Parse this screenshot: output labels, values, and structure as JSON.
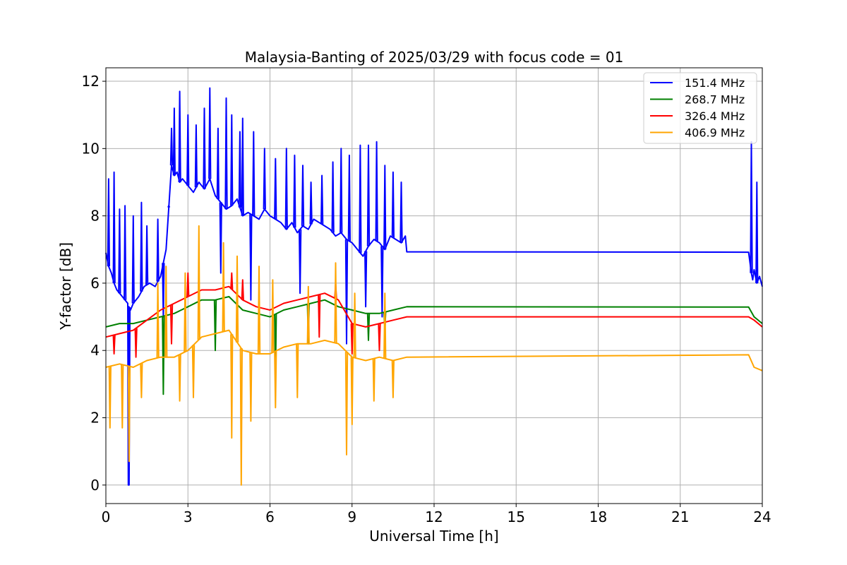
{
  "chart_data": {
    "type": "line",
    "title": "Malaysia-Banting of 2025/03/29 with focus code = 01",
    "xlabel": "Universal Time [h]",
    "ylabel": "Y-factor [dB]",
    "xlim": [
      0,
      24
    ],
    "ylim": [
      -0.55,
      12.4
    ],
    "xticks": [
      0,
      3,
      6,
      9,
      12,
      15,
      18,
      21,
      24
    ],
    "yticks": [
      0,
      2,
      4,
      6,
      8,
      10,
      12
    ],
    "grid": true,
    "legend_position": "top-right",
    "series": [
      {
        "name": "151.4 MHz",
        "color": "#0000ff",
        "x": [
          0,
          0.1,
          0.2,
          0.3,
          0.4,
          0.5,
          0.6,
          0.7,
          0.8,
          0.82,
          0.84,
          0.9,
          1.0,
          1.2,
          1.4,
          1.6,
          1.8,
          2.0,
          2.2,
          2.4,
          2.5,
          2.6,
          2.7,
          2.8,
          3.0,
          3.2,
          3.4,
          3.6,
          3.8,
          4.0,
          4.2,
          4.4,
          4.6,
          4.8,
          5.0,
          5.2,
          5.4,
          5.6,
          5.8,
          6.0,
          6.2,
          6.4,
          6.6,
          6.8,
          7.0,
          7.2,
          7.4,
          7.6,
          7.8,
          8.0,
          8.2,
          8.4,
          8.6,
          8.8,
          9.0,
          9.2,
          9.4,
          9.6,
          9.8,
          10.0,
          10.2,
          10.4,
          10.6,
          10.8,
          10.95,
          11.0,
          23.5,
          23.6,
          23.65,
          23.7,
          23.8,
          23.9,
          24.0
        ],
        "y": [
          6.9,
          6.5,
          6.3,
          6.0,
          5.8,
          5.7,
          5.6,
          5.5,
          5.4,
          0.0,
          5.3,
          5.2,
          5.4,
          5.6,
          5.9,
          6.0,
          5.9,
          6.2,
          7.0,
          9.5,
          9.2,
          9.3,
          9.0,
          9.1,
          8.9,
          8.7,
          9.0,
          8.8,
          9.1,
          8.6,
          8.4,
          8.2,
          8.3,
          8.5,
          8.0,
          8.1,
          8.0,
          7.9,
          8.2,
          8.0,
          7.9,
          7.8,
          7.6,
          7.8,
          7.5,
          7.7,
          7.6,
          7.9,
          7.8,
          7.7,
          7.6,
          7.4,
          7.5,
          7.3,
          7.2,
          7.0,
          6.8,
          7.1,
          7.3,
          7.2,
          7.0,
          7.4,
          7.3,
          7.2,
          7.4,
          6.93,
          6.92,
          6.3,
          6.1,
          6.4,
          6.0,
          6.2,
          5.9
        ],
        "spikes": [
          [
            0.1,
            9.1
          ],
          [
            0.3,
            9.3
          ],
          [
            0.5,
            8.2
          ],
          [
            0.7,
            8.3
          ],
          [
            1.0,
            8.0
          ],
          [
            1.3,
            8.4
          ],
          [
            1.5,
            7.7
          ],
          [
            1.9,
            7.9
          ],
          [
            2.3,
            8.3
          ],
          [
            2.4,
            10.6
          ],
          [
            2.5,
            11.2
          ],
          [
            2.7,
            11.7
          ],
          [
            3.0,
            11.0
          ],
          [
            3.3,
            10.7
          ],
          [
            3.6,
            11.2
          ],
          [
            3.8,
            11.8
          ],
          [
            4.1,
            10.6
          ],
          [
            4.4,
            11.5
          ],
          [
            4.6,
            11.0
          ],
          [
            4.9,
            10.5
          ],
          [
            5.0,
            10.9
          ],
          [
            5.4,
            10.5
          ],
          [
            5.8,
            10.0
          ],
          [
            6.2,
            9.7
          ],
          [
            6.6,
            10.0
          ],
          [
            6.9,
            9.8
          ],
          [
            7.2,
            9.5
          ],
          [
            7.5,
            9.0
          ],
          [
            7.9,
            9.2
          ],
          [
            8.3,
            9.6
          ],
          [
            8.6,
            10.0
          ],
          [
            8.9,
            9.8
          ],
          [
            9.3,
            10.1
          ],
          [
            9.6,
            10.1
          ],
          [
            9.9,
            10.2
          ],
          [
            10.2,
            9.5
          ],
          [
            10.5,
            9.3
          ],
          [
            10.8,
            9.0
          ],
          [
            23.6,
            10.2
          ],
          [
            23.8,
            9.0
          ]
        ],
        "dips": [
          [
            0.85,
            0.0
          ],
          [
            2.1,
            5.0
          ],
          [
            4.2,
            6.3
          ],
          [
            5.3,
            5.5
          ],
          [
            7.1,
            5.7
          ],
          [
            8.8,
            4.2
          ],
          [
            9.5,
            5.3
          ],
          [
            10.1,
            5.0
          ]
        ]
      },
      {
        "name": "268.7 MHz",
        "color": "#008000",
        "x": [
          0,
          0.5,
          1.0,
          1.5,
          2.0,
          2.5,
          3.0,
          3.5,
          4.0,
          4.5,
          5.0,
          5.5,
          6.0,
          6.5,
          7.0,
          7.5,
          8.0,
          8.5,
          9.0,
          9.5,
          10.0,
          10.5,
          11.0,
          23.5,
          23.7,
          24.0
        ],
        "y": [
          4.7,
          4.8,
          4.8,
          4.9,
          5.0,
          5.1,
          5.3,
          5.5,
          5.5,
          5.6,
          5.2,
          5.1,
          5.0,
          5.2,
          5.3,
          5.4,
          5.5,
          5.3,
          5.2,
          5.1,
          5.1,
          5.2,
          5.3,
          5.29,
          5.0,
          4.8
        ],
        "dips": [
          [
            2.1,
            2.7
          ],
          [
            4.0,
            4.0
          ],
          [
            6.2,
            3.2
          ],
          [
            7.4,
            4.2
          ],
          [
            9.6,
            4.3
          ],
          [
            10.2,
            4.6
          ]
        ]
      },
      {
        "name": "326.4 MHz",
        "color": "#ff0000",
        "x": [
          0,
          0.5,
          1.0,
          1.5,
          2.0,
          2.5,
          3.0,
          3.5,
          4.0,
          4.5,
          5.0,
          5.5,
          6.0,
          6.5,
          7.0,
          7.5,
          8.0,
          8.5,
          9.0,
          9.5,
          10.0,
          10.5,
          11.0,
          23.5,
          23.7,
          24.0
        ],
        "y": [
          4.4,
          4.5,
          4.6,
          4.9,
          5.2,
          5.4,
          5.6,
          5.8,
          5.8,
          5.9,
          5.5,
          5.3,
          5.2,
          5.4,
          5.5,
          5.6,
          5.7,
          5.5,
          4.8,
          4.7,
          4.8,
          4.9,
          5.0,
          5.0,
          4.9,
          4.7
        ],
        "spikes": [
          [
            3.0,
            6.3
          ],
          [
            4.6,
            6.3
          ],
          [
            5.0,
            6.1
          ],
          [
            8.4,
            6.0
          ]
        ],
        "dips": [
          [
            0.3,
            3.9
          ],
          [
            1.1,
            3.8
          ],
          [
            2.4,
            4.2
          ],
          [
            7.8,
            4.4
          ],
          [
            9.0,
            3.9
          ],
          [
            10.0,
            4.0
          ]
        ]
      },
      {
        "name": "406.9 MHz",
        "color": "#ffa500",
        "x": [
          0,
          0.5,
          1.0,
          1.5,
          2.0,
          2.5,
          3.0,
          3.5,
          4.0,
          4.5,
          5.0,
          5.5,
          6.0,
          6.5,
          7.0,
          7.5,
          8.0,
          8.5,
          9.0,
          9.5,
          10.0,
          10.5,
          11.0,
          23.5,
          23.7,
          24.0
        ],
        "y": [
          3.5,
          3.6,
          3.5,
          3.7,
          3.8,
          3.8,
          4.0,
          4.4,
          4.5,
          4.6,
          4.0,
          3.9,
          3.9,
          4.1,
          4.2,
          4.2,
          4.3,
          4.2,
          3.8,
          3.7,
          3.8,
          3.7,
          3.8,
          3.87,
          3.5,
          3.4
        ],
        "spikes": [
          [
            1.9,
            6.0
          ],
          [
            2.2,
            6.5
          ],
          [
            2.9,
            6.3
          ],
          [
            3.4,
            7.7
          ],
          [
            4.3,
            7.2
          ],
          [
            4.8,
            6.8
          ],
          [
            5.6,
            6.5
          ],
          [
            6.1,
            6.1
          ],
          [
            7.4,
            5.9
          ],
          [
            8.4,
            6.6
          ],
          [
            9.1,
            5.7
          ],
          [
            10.2,
            5.7
          ]
        ],
        "dips": [
          [
            0.15,
            1.7
          ],
          [
            0.6,
            1.7
          ],
          [
            0.85,
            0.7
          ],
          [
            1.3,
            2.6
          ],
          [
            2.7,
            2.5
          ],
          [
            3.2,
            2.6
          ],
          [
            4.6,
            1.4
          ],
          [
            4.95,
            0.0
          ],
          [
            5.3,
            1.9
          ],
          [
            6.2,
            2.3
          ],
          [
            7.0,
            2.6
          ],
          [
            8.8,
            0.9
          ],
          [
            9.0,
            1.8
          ],
          [
            9.8,
            2.5
          ],
          [
            10.5,
            2.6
          ]
        ]
      }
    ]
  }
}
